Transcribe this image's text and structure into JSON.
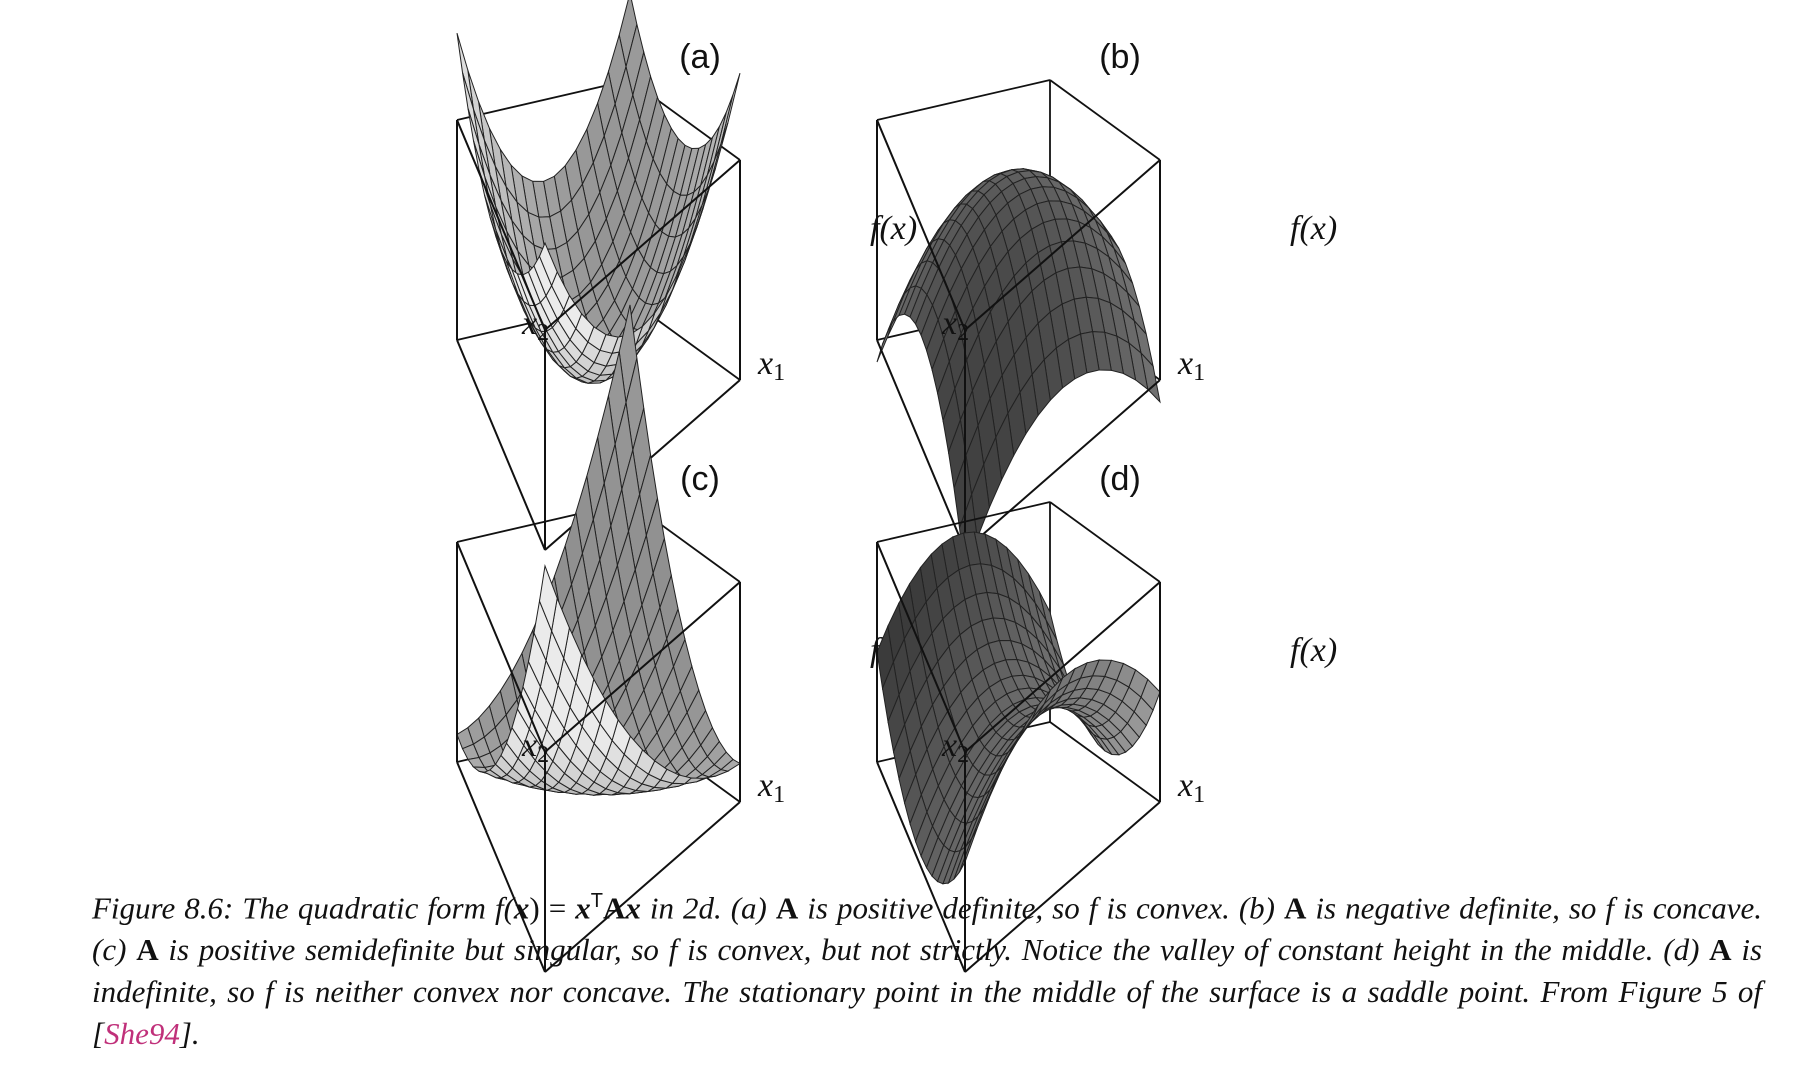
{
  "panels": [
    {
      "id": "a",
      "label": "(a)",
      "fx": "f(x)",
      "x1": "x",
      "x1sub": "1",
      "x2": "x",
      "x2sub": "2",
      "shape": "bowl",
      "shade": "light"
    },
    {
      "id": "b",
      "label": "(b)",
      "fx": "f(x)",
      "x1": "x",
      "x1sub": "1",
      "x2": "x",
      "x2sub": "2",
      "shape": "dome",
      "shade": "dark"
    },
    {
      "id": "c",
      "label": "(c)",
      "fx": "f(x)",
      "x1": "x",
      "x1sub": "1",
      "x2": "x",
      "x2sub": "2",
      "shape": "valley",
      "shade": "light"
    },
    {
      "id": "d",
      "label": "(d)",
      "fx": "f(x)",
      "x1": "x",
      "x1sub": "1",
      "x2": "x",
      "x2sub": "2",
      "shape": "saddle",
      "shade": "dark"
    }
  ],
  "caption": {
    "p1": "Figure 8.6: The quadratic form ",
    "formula_f": "f(",
    "formula_x": "x",
    "formula_eq": ") = ",
    "formula_xT": "x",
    "formula_T": "T",
    "formula_A": "A",
    "formula_x2": "x",
    "p2": " in 2d. (a) ",
    "A1": "A",
    "p3": " is positive definite, so f is convex. (b) ",
    "A2": "A",
    "p4": " is negative definite, so f is concave. (c) ",
    "A3": "A",
    "p5": " is positive semidefinite but singular, so f is convex, but not strictly. Notice the valley of constant height in the middle. (d) ",
    "A4": "A",
    "p6": " is indefinite, so f is neither convex nor concave. The stationary point in the middle of the surface is a saddle point. From Figure 5 of [",
    "cite": "She94",
    "p7": "]."
  }
}
